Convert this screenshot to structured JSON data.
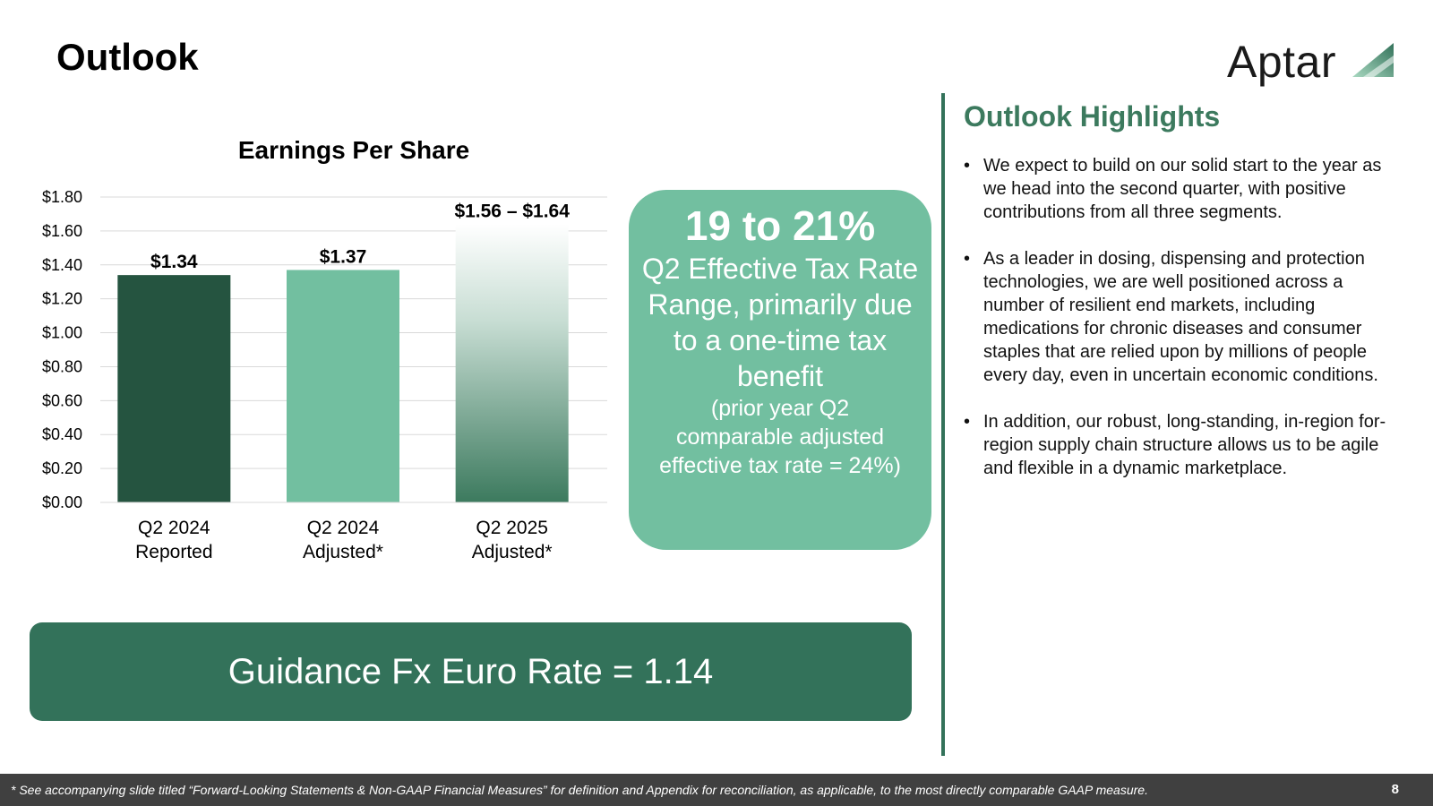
{
  "slide": {
    "title": "Outlook",
    "logo_text": "Aptar",
    "page_number": "8"
  },
  "chart_data": {
    "type": "bar",
    "title": "Earnings Per Share",
    "categories": [
      "Q2 2024\nReported",
      "Q2 2024\nAdjusted*",
      "Q2 2025\nAdjusted*"
    ],
    "values": [
      1.34,
      1.37,
      1.64
    ],
    "range_low": [
      null,
      null,
      1.56
    ],
    "data_labels": [
      "$1.34",
      "$1.37",
      "$1.56 – $1.64"
    ],
    "y_ticks": [
      "$0.00",
      "$0.20",
      "$0.40",
      "$0.60",
      "$0.80",
      "$1.00",
      "$1.20",
      "$1.40",
      "$1.60",
      "$1.80"
    ],
    "ylim": [
      0,
      1.8
    ],
    "grid": true,
    "colors": [
      "#255440",
      "#72bfa0",
      "gradient-#3c7a5e"
    ]
  },
  "tax_box": {
    "headline": "19 to 21%",
    "subhead": "Q2 Effective Tax Rate Range, primarily due to a one-time tax benefit",
    "note": "(prior year Q2 comparable adjusted effective tax rate = 24%)"
  },
  "fx_box": {
    "text": "Guidance Fx Euro Rate = 1.14"
  },
  "highlights": {
    "title": "Outlook Highlights",
    "items": [
      "We expect to build on our solid start to the year as we head into the second quarter, with positive contributions from all three segments.",
      "As a leader in dosing, dispensing and protection technologies, we are well positioned across a number of resilient end markets, including medications for chronic diseases and consumer staples that are relied upon by millions of people every day, even in uncertain economic conditions.",
      "In addition, our robust, long-standing, in-region for-region supply chain structure allows us to be agile and flexible in a dynamic marketplace."
    ]
  },
  "footer": {
    "note": "* See accompanying slide titled “Forward-Looking Statements & Non-GAAP Financial Measures” for definition and Appendix for reconciliation, as applicable, to the most directly comparable GAAP measure."
  },
  "colors": {
    "accent_dark": "#33725a",
    "accent_light": "#72bfa0",
    "title_green": "#3c7a5e",
    "footer_bg": "#404040"
  }
}
